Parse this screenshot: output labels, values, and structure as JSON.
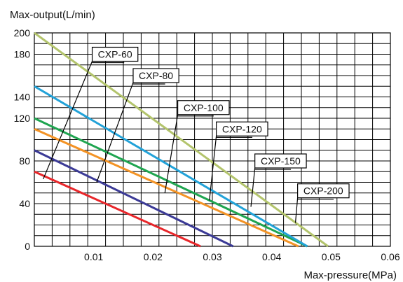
{
  "chart_data": {
    "type": "line",
    "ylabel": "Max-output(L/min)",
    "xlabel": "Max-pressure(MPa)",
    "xlim": [
      0,
      0.06
    ],
    "ylim": [
      0,
      200
    ],
    "x_ticks": [
      0.01,
      0.02,
      0.03,
      0.04,
      0.05,
      0.06
    ],
    "x_tick_labels": [
      "0.01",
      "0.02",
      "0.03",
      "0.04",
      "0.05",
      "0.06"
    ],
    "y_ticks": [
      0,
      40,
      80,
      120,
      140,
      180,
      200
    ],
    "y_tick_labels": [
      "0",
      "40",
      "80",
      "120",
      "140",
      "180",
      "200"
    ],
    "grid": true,
    "series": [
      {
        "name": "CXP-60",
        "color": "#e8262a",
        "points": [
          [
            0,
            70
          ],
          [
            0.028,
            0
          ]
        ],
        "label_pos": [
          0.0136,
          180
        ],
        "anchor": [
          0.0015,
          63
        ]
      },
      {
        "name": "CXP-80",
        "color": "#3b3a96",
        "points": [
          [
            0,
            90
          ],
          [
            0.0335,
            0
          ]
        ],
        "label_pos": [
          0.0205,
          160
        ],
        "anchor": [
          0.0105,
          60
        ]
      },
      {
        "name": "CXP-100",
        "color": "#f39325",
        "points": [
          [
            0,
            110
          ],
          [
            0.0445,
            0
          ]
        ],
        "label_pos": [
          0.0285,
          130
        ],
        "anchor": [
          0.022,
          50
        ]
      },
      {
        "name": "CXP-120",
        "color": "#1fa550",
        "points": [
          [
            0,
            120
          ],
          [
            0.046,
            0
          ]
        ],
        "label_pos": [
          0.035,
          110
        ],
        "anchor": [
          0.0295,
          43
        ]
      },
      {
        "name": "CXP-150",
        "color": "#22a2d8",
        "points": [
          [
            0,
            150
          ],
          [
            0.046,
            0
          ]
        ],
        "label_pos": [
          0.0415,
          80
        ],
        "anchor": [
          0.0365,
          37
        ]
      },
      {
        "name": "CXP-200",
        "color": "#b3c46c",
        "points": [
          [
            0,
            200
          ],
          [
            0.0495,
            0
          ]
        ],
        "label_pos": [
          0.0487,
          52
        ],
        "anchor": [
          0.044,
          22
        ]
      }
    ]
  }
}
